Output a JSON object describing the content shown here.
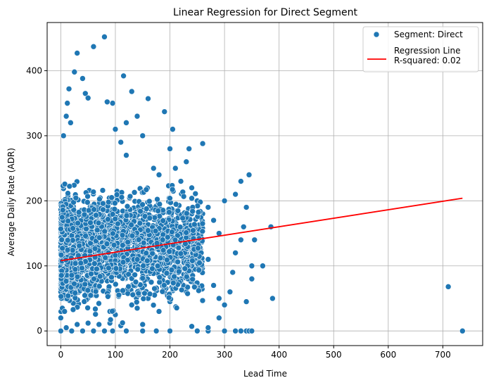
{
  "chart_data": {
    "type": "scatter",
    "title": "Linear Regression for Direct Segment",
    "xlabel": "Lead Time",
    "ylabel": "Average Daily Rate (ADR)",
    "xlim": [
      -25,
      773
    ],
    "ylim": [
      -22.5,
      474
    ],
    "xticks": [
      0,
      100,
      200,
      300,
      400,
      500,
      600,
      700
    ],
    "yticks": [
      0,
      100,
      200,
      300,
      400
    ],
    "grid": true,
    "legend_position": "top-right",
    "colors": {
      "scatter": "#1f77b4",
      "regression": "#ff0000",
      "grid": "#b0b0b0"
    },
    "series": [
      {
        "name": "Segment: Direct",
        "kind": "scatter",
        "points": [
          [
            0,
            0
          ],
          [
            0,
            20
          ],
          [
            2,
            50
          ],
          [
            3,
            120
          ],
          [
            5,
            200
          ],
          [
            5,
            300
          ],
          [
            10,
            330
          ],
          [
            12,
            350
          ],
          [
            15,
            372
          ],
          [
            18,
            320
          ],
          [
            25,
            398
          ],
          [
            30,
            427
          ],
          [
            40,
            388
          ],
          [
            45,
            365
          ],
          [
            60,
            437
          ],
          [
            80,
            452
          ],
          [
            85,
            352
          ],
          [
            115,
            392
          ],
          [
            130,
            368
          ],
          [
            50,
            358
          ],
          [
            95,
            350
          ],
          [
            120,
            320
          ],
          [
            140,
            330
          ],
          [
            160,
            357
          ],
          [
            190,
            337
          ],
          [
            205,
            310
          ],
          [
            235,
            280
          ],
          [
            260,
            288
          ],
          [
            300,
            200
          ],
          [
            320,
            210
          ],
          [
            330,
            230
          ],
          [
            345,
            240
          ],
          [
            350,
            100
          ],
          [
            370,
            100
          ],
          [
            385,
            160
          ],
          [
            388,
            50
          ],
          [
            340,
            45
          ],
          [
            330,
            0
          ],
          [
            340,
            0
          ],
          [
            345,
            0
          ],
          [
            350,
            0
          ],
          [
            300,
            0
          ],
          [
            320,
            0
          ],
          [
            270,
            0
          ],
          [
            250,
            0
          ],
          [
            200,
            0
          ],
          [
            175,
            0
          ],
          [
            150,
            0
          ],
          [
            120,
            0
          ],
          [
            95,
            0
          ],
          [
            80,
            0
          ],
          [
            60,
            0
          ],
          [
            40,
            0
          ],
          [
            20,
            0
          ],
          [
            10,
            5
          ],
          [
            30,
            10
          ],
          [
            50,
            12
          ],
          [
            70,
            10
          ],
          [
            90,
            12
          ],
          [
            110,
            8
          ],
          [
            150,
            10
          ],
          [
            240,
            7
          ],
          [
            270,
            5
          ],
          [
            290,
            20
          ],
          [
            300,
            40
          ],
          [
            310,
            60
          ],
          [
            315,
            90
          ],
          [
            320,
            120
          ],
          [
            330,
            140
          ],
          [
            335,
            160
          ],
          [
            340,
            190
          ],
          [
            350,
            80
          ],
          [
            355,
            140
          ],
          [
            710,
            68
          ],
          [
            736,
            0
          ],
          [
            385,
            160
          ],
          [
            120,
            270
          ],
          [
            110,
            290
          ],
          [
            100,
            310
          ],
          [
            150,
            300
          ],
          [
            170,
            250
          ],
          [
            180,
            240
          ],
          [
            200,
            280
          ],
          [
            210,
            250
          ],
          [
            220,
            230
          ],
          [
            230,
            260
          ],
          [
            240,
            220
          ],
          [
            250,
            200
          ],
          [
            260,
            180
          ],
          [
            270,
            190
          ],
          [
            280,
            170
          ],
          [
            290,
            150
          ],
          [
            210,
            100
          ],
          [
            220,
            80
          ],
          [
            230,
            60
          ],
          [
            240,
            90
          ],
          [
            250,
            120
          ],
          [
            260,
            140
          ],
          [
            270,
            110
          ],
          [
            280,
            70
          ],
          [
            290,
            50
          ],
          [
            160,
            50
          ],
          [
            170,
            40
          ],
          [
            180,
            30
          ],
          [
            190,
            60
          ],
          [
            200,
            45
          ],
          [
            130,
            40
          ],
          [
            140,
            35
          ],
          [
            100,
            25
          ],
          [
            90,
            30
          ]
        ]
      },
      {
        "name": "Regression Line\nR-squared: 0.02",
        "kind": "line",
        "points": [
          [
            0,
            108
          ],
          [
            736,
            204
          ]
        ]
      }
    ],
    "legend": [
      {
        "label_lines": [
          "Segment: Direct"
        ],
        "marker": "circle"
      },
      {
        "label_lines": [
          "Regression Line",
          "R-squared: 0.02"
        ],
        "marker": "line"
      }
    ]
  }
}
